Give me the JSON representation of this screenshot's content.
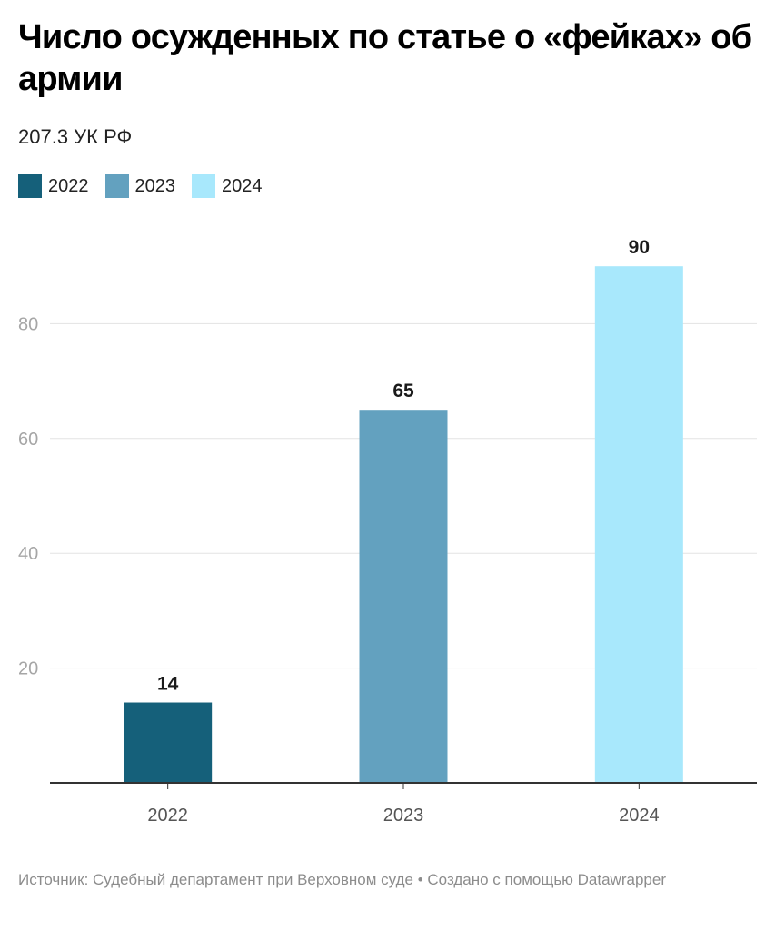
{
  "title": "Число осужденных по статье о «фейках» об армии",
  "subtitle": "207.3 УК РФ",
  "legend": [
    {
      "label": "2022",
      "color": "#15607a"
    },
    {
      "label": "2023",
      "color": "#63a1bf"
    },
    {
      "label": "2024",
      "color": "#a8e8fc"
    }
  ],
  "footer": {
    "source_label": "Источник: Судебный департамент при Верховном суде",
    "separator": "•",
    "credit": "Создано с помощью Datawrapper"
  },
  "chart_data": {
    "type": "bar",
    "categories": [
      "2022",
      "2023",
      "2024"
    ],
    "values": [
      14,
      65,
      90
    ],
    "colors": [
      "#15607a",
      "#63a1bf",
      "#a8e8fc"
    ],
    "value_labels": [
      "14",
      "65",
      "90"
    ],
    "y_ticks": [
      20,
      40,
      60,
      80
    ],
    "ylim": [
      0,
      96
    ],
    "grid": true,
    "legend_position": "top-left",
    "title": "Число осужденных по статье о «фейках» об армии",
    "subtitle": "207.3 УК РФ",
    "xlabel": "",
    "ylabel": ""
  }
}
